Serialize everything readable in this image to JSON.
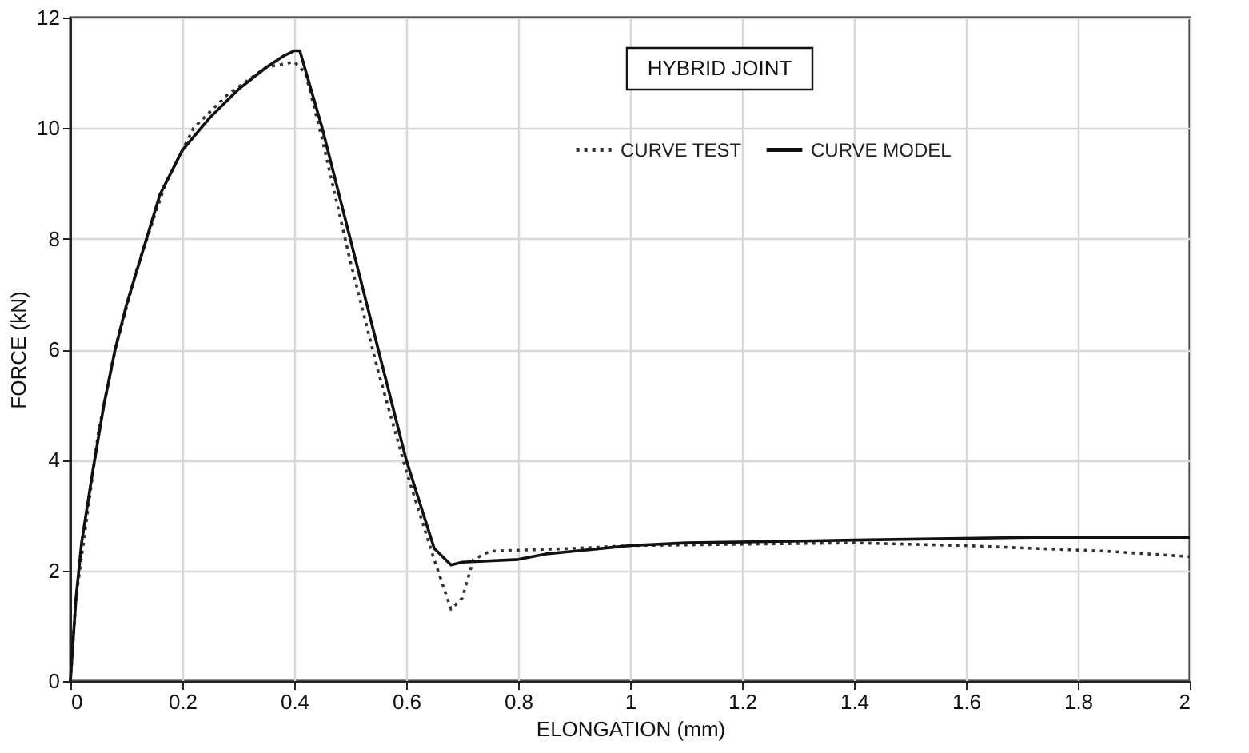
{
  "chart_data": {
    "type": "line",
    "xlabel": "ELONGATION (mm)",
    "ylabel": "FORCE (kN)",
    "annotations": [
      "HYBRID JOINT"
    ],
    "xlim": [
      0,
      2
    ],
    "xticks": [
      0,
      0.2,
      0.4,
      0.6,
      0.8,
      1,
      1.2,
      1.4,
      1.6,
      1.8,
      2
    ],
    "ylim": [
      0,
      12
    ],
    "yticks": [
      0,
      2,
      4,
      6,
      8,
      10,
      12
    ],
    "grid": true,
    "legend": "top right",
    "marker": "none",
    "series": [
      {
        "name": "CURVE TEST",
        "color": "#333333",
        "line_style": "dotted",
        "x": [
          0,
          0.01,
          0.03,
          0.05,
          0.08,
          0.12,
          0.17,
          0.22,
          0.28,
          0.35,
          0.4,
          0.42,
          0.45,
          0.5,
          0.55,
          0.6,
          0.65,
          0.68,
          0.7,
          0.72,
          0.75,
          0.9,
          1.0,
          1.4,
          1.6,
          1.72,
          1.85,
          2
        ],
        "values": [
          0,
          1.5,
          3,
          4.5,
          6,
          7.5,
          9,
          10,
          10.6,
          11.1,
          11.2,
          11,
          9.8,
          7.6,
          5.6,
          3.8,
          2.2,
          1.3,
          1.5,
          2.2,
          2.35,
          2.4,
          2.45,
          2.5,
          2.45,
          2.4,
          2.35,
          2.25
        ]
      },
      {
        "name": "CURVE MODEL",
        "color": "#111111",
        "line_style": "solid",
        "x": [
          0,
          0.01,
          0.02,
          0.04,
          0.06,
          0.08,
          0.1,
          0.13,
          0.16,
          0.2,
          0.25,
          0.3,
          0.35,
          0.38,
          0.4,
          0.41,
          0.45,
          0.5,
          0.55,
          0.6,
          0.65,
          0.68,
          0.7,
          0.8,
          0.85,
          0.9,
          1.0,
          1.1,
          1.4,
          1.72,
          2
        ],
        "values": [
          0,
          1.5,
          2.5,
          3.8,
          5,
          6,
          6.8,
          7.8,
          8.8,
          9.6,
          10.2,
          10.7,
          11.1,
          11.3,
          11.4,
          11.4,
          10,
          8,
          6,
          4,
          2.4,
          2.1,
          2.15,
          2.2,
          2.3,
          2.35,
          2.45,
          2.5,
          2.55,
          2.6,
          2.6
        ]
      }
    ]
  }
}
